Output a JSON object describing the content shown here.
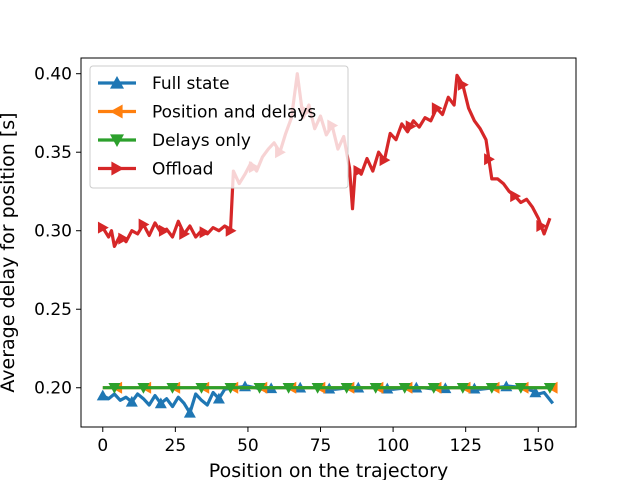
{
  "chart_data": {
    "type": "line",
    "xlabel": "Position on the trajectory",
    "ylabel": "Average delay for position [s]",
    "xlim": [
      -7.5,
      163
    ],
    "ylim": [
      0.175,
      0.41
    ],
    "xticks": [
      0,
      25,
      50,
      75,
      100,
      125,
      150
    ],
    "yticks": [
      0.2,
      0.25,
      0.3,
      0.35,
      0.4
    ],
    "xtick_labels": [
      "0",
      "25",
      "50",
      "75",
      "100",
      "125",
      "150"
    ],
    "ytick_labels": [
      "0.20",
      "0.25",
      "0.30",
      "0.35",
      "0.40"
    ],
    "grid": false,
    "legend_position": "upper-left",
    "series": [
      {
        "name": "Full state",
        "color": "#1f77b4",
        "marker": "triangle-up",
        "points": [
          [
            0,
            0.195
          ],
          [
            2,
            0.193
          ],
          [
            4,
            0.196
          ],
          [
            6,
            0.192
          ],
          [
            8,
            0.194
          ],
          [
            10,
            0.191
          ],
          [
            12,
            0.196
          ],
          [
            14,
            0.193
          ],
          [
            16,
            0.189
          ],
          [
            18,
            0.195
          ],
          [
            20,
            0.19
          ],
          [
            22,
            0.193
          ],
          [
            24,
            0.188
          ],
          [
            26,
            0.194
          ],
          [
            28,
            0.19
          ],
          [
            30,
            0.184
          ],
          [
            32,
            0.196
          ],
          [
            34,
            0.192
          ],
          [
            36,
            0.189
          ],
          [
            38,
            0.197
          ],
          [
            40,
            0.193
          ],
          [
            42,
            0.199
          ],
          [
            45,
            0.2
          ],
          [
            50,
            0.201
          ],
          [
            55,
            0.199
          ],
          [
            60,
            0.2
          ],
          [
            65,
            0.2
          ],
          [
            70,
            0.2
          ],
          [
            75,
            0.2
          ],
          [
            80,
            0.199
          ],
          [
            85,
            0.2
          ],
          [
            90,
            0.2
          ],
          [
            95,
            0.2
          ],
          [
            100,
            0.199
          ],
          [
            105,
            0.2
          ],
          [
            110,
            0.2
          ],
          [
            115,
            0.199
          ],
          [
            120,
            0.2
          ],
          [
            125,
            0.2
          ],
          [
            130,
            0.199
          ],
          [
            135,
            0.2
          ],
          [
            140,
            0.201
          ],
          [
            145,
            0.2
          ],
          [
            148,
            0.198
          ],
          [
            150,
            0.196
          ],
          [
            152,
            0.197
          ],
          [
            155,
            0.19
          ]
        ],
        "marker_x": [
          0,
          10,
          20,
          30,
          40,
          49,
          58,
          68,
          78,
          88,
          98,
          108,
          118,
          128,
          139,
          149
        ]
      },
      {
        "name": "Position and delays",
        "color": "#ff7f0e",
        "marker": "triangle-left",
        "points": [
          [
            0,
            0.2
          ],
          [
            155,
            0.2
          ]
        ],
        "marker_x": [
          5,
          15,
          25,
          35,
          45,
          55,
          65,
          75,
          85,
          95,
          105,
          115,
          125,
          135,
          145,
          155
        ]
      },
      {
        "name": "Delays only",
        "color": "#2ca02c",
        "marker": "triangle-down",
        "points": [
          [
            0,
            0.2
          ],
          [
            155,
            0.2
          ]
        ],
        "marker_x": [
          4,
          14,
          24,
          34,
          44,
          54,
          64,
          74,
          84,
          94,
          104,
          114,
          124,
          134,
          144,
          154
        ]
      },
      {
        "name": "Offload",
        "color": "#d62728",
        "marker": "triangle-right",
        "points": [
          [
            0,
            0.302
          ],
          [
            2,
            0.296
          ],
          [
            3,
            0.3
          ],
          [
            4,
            0.29
          ],
          [
            6,
            0.297
          ],
          [
            8,
            0.293
          ],
          [
            10,
            0.3
          ],
          [
            12,
            0.298
          ],
          [
            14,
            0.304
          ],
          [
            16,
            0.297
          ],
          [
            18,
            0.305
          ],
          [
            20,
            0.299
          ],
          [
            22,
            0.301
          ],
          [
            24,
            0.296
          ],
          [
            26,
            0.306
          ],
          [
            28,
            0.298
          ],
          [
            30,
            0.303
          ],
          [
            32,
            0.296
          ],
          [
            34,
            0.3
          ],
          [
            36,
            0.298
          ],
          [
            38,
            0.302
          ],
          [
            40,
            0.3
          ],
          [
            42,
            0.303
          ],
          [
            44,
            0.3
          ],
          [
            45,
            0.338
          ],
          [
            47,
            0.33
          ],
          [
            49,
            0.336
          ],
          [
            51,
            0.343
          ],
          [
            53,
            0.338
          ],
          [
            55,
            0.347
          ],
          [
            57,
            0.352
          ],
          [
            59,
            0.356
          ],
          [
            61,
            0.35
          ],
          [
            63,
            0.362
          ],
          [
            65,
            0.372
          ],
          [
            67,
            0.4
          ],
          [
            69,
            0.372
          ],
          [
            71,
            0.38
          ],
          [
            73,
            0.365
          ],
          [
            75,
            0.373
          ],
          [
            77,
            0.361
          ],
          [
            79,
            0.367
          ],
          [
            81,
            0.352
          ],
          [
            83,
            0.36
          ],
          [
            85,
            0.34
          ],
          [
            86,
            0.314
          ],
          [
            87,
            0.34
          ],
          [
            89,
            0.336
          ],
          [
            91,
            0.346
          ],
          [
            93,
            0.338
          ],
          [
            95,
            0.35
          ],
          [
            97,
            0.345
          ],
          [
            99,
            0.362
          ],
          [
            101,
            0.358
          ],
          [
            103,
            0.368
          ],
          [
            105,
            0.363
          ],
          [
            107,
            0.37
          ],
          [
            109,
            0.366
          ],
          [
            111,
            0.372
          ],
          [
            113,
            0.37
          ],
          [
            115,
            0.378
          ],
          [
            117,
            0.374
          ],
          [
            119,
            0.385
          ],
          [
            121,
            0.38
          ],
          [
            122,
            0.399
          ],
          [
            124,
            0.393
          ],
          [
            126,
            0.378
          ],
          [
            128,
            0.37
          ],
          [
            130,
            0.365
          ],
          [
            132,
            0.358
          ],
          [
            134,
            0.333
          ],
          [
            136,
            0.333
          ],
          [
            138,
            0.33
          ],
          [
            140,
            0.325
          ],
          [
            142,
            0.322
          ],
          [
            144,
            0.318
          ],
          [
            146,
            0.32
          ],
          [
            148,
            0.315
          ],
          [
            150,
            0.308
          ],
          [
            152,
            0.298
          ],
          [
            154,
            0.308
          ]
        ],
        "marker_x": [
          0,
          7,
          14,
          21,
          28,
          35,
          44,
          52,
          61,
          70,
          79,
          88,
          97,
          106,
          115,
          124,
          133,
          142,
          151
        ]
      }
    ]
  }
}
